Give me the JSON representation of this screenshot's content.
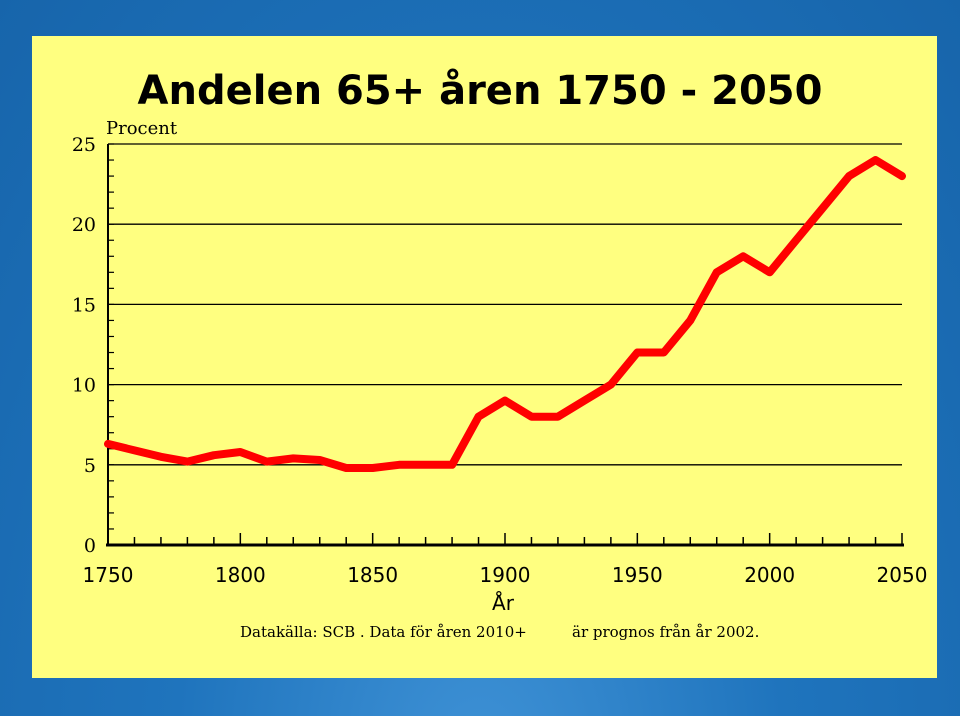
{
  "chart_data": {
    "type": "line",
    "title": "Andelen 65+ åren 1750 - 2050",
    "ylabel": "Procent",
    "xlabel": "År",
    "source_left": "Datakälla: SCB . Data för åren 2010+",
    "source_right": "är prognos från år 2002.",
    "xlim": [
      1750,
      2050
    ],
    "ylim": [
      0,
      25
    ],
    "x_ticks": [
      1750,
      1800,
      1850,
      1900,
      1950,
      2000,
      2050
    ],
    "y_ticks": [
      0,
      5,
      10,
      15,
      20,
      25
    ],
    "grid": true,
    "series": [
      {
        "color": "#ff0000",
        "x": [
          1750,
          1760,
          1770,
          1780,
          1790,
          1800,
          1810,
          1820,
          1830,
          1840,
          1850,
          1860,
          1870,
          1880,
          1890,
          1900,
          1910,
          1920,
          1930,
          1940,
          1950,
          1960,
          1970,
          1980,
          1990,
          2000,
          2010,
          2020,
          2030,
          2040,
          2050
        ],
        "y": [
          6.3,
          5.9,
          5.5,
          5.2,
          5.6,
          5.8,
          5.2,
          5.4,
          5.3,
          4.8,
          4.8,
          5.0,
          5.0,
          5.0,
          8.0,
          9.0,
          8.0,
          8.0,
          9.0,
          10.0,
          12.0,
          12.0,
          14.0,
          17.0,
          18.0,
          17.0,
          19.0,
          21.0,
          23.0,
          24.0,
          23.0
        ]
      }
    ]
  }
}
